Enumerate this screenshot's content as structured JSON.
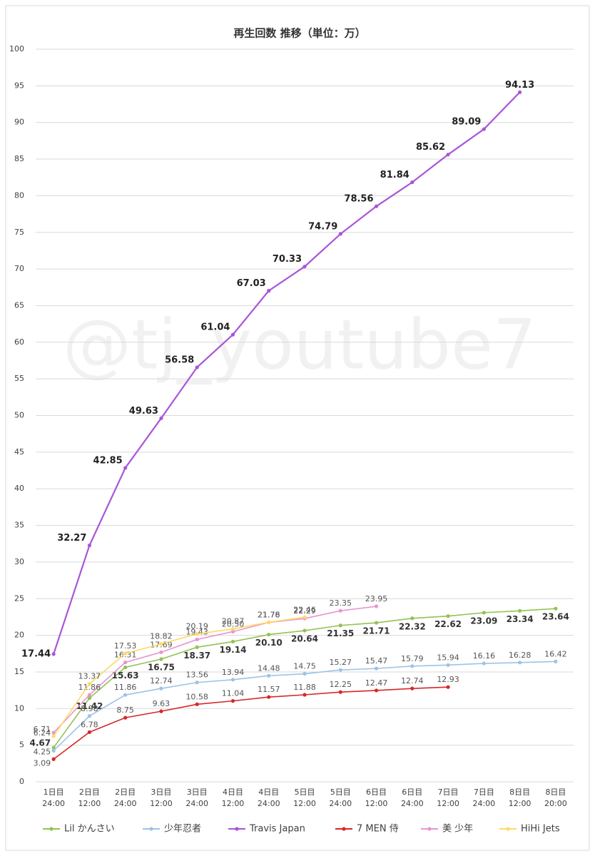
{
  "chart_data": {
    "type": "line",
    "title": "再生回数 推移（単位：万）",
    "watermark": "@tj_youtube7",
    "categories": [
      "1日目\n24:00",
      "2日目\n12:00",
      "2日目\n24:00",
      "3日目\n12:00",
      "3日目\n24:00",
      "4日目\n12:00",
      "4日目\n24:00",
      "5日目\n12:00",
      "5日目\n24:00",
      "6日目\n12:00",
      "6日目\n24:00",
      "7日目\n12:00",
      "7日目\n24:00",
      "8日目\n12:00",
      "8日目\n20:00"
    ],
    "ylim": [
      0,
      100
    ],
    "yticks": [
      0,
      5,
      10,
      15,
      20,
      25,
      30,
      35,
      40,
      45,
      50,
      55,
      60,
      65,
      70,
      75,
      80,
      85,
      90,
      95,
      100
    ],
    "grid": true,
    "legend": "bottom",
    "series": [
      {
        "name": "Lil かんさい",
        "color": "#92c353",
        "values": [
          4.67,
          11.42,
          15.63,
          16.75,
          18.37,
          19.14,
          20.1,
          20.64,
          21.35,
          21.71,
          22.32,
          22.62,
          23.09,
          23.34,
          23.64
        ],
        "value_labels": [
          "4.67",
          "11.42",
          "15.63",
          "16.75",
          "18.37",
          "19.14",
          "20.10",
          "20.64",
          "21.35",
          "21.71",
          "22.32",
          "22.62",
          "23.09",
          "23.34",
          "23.64"
        ]
      },
      {
        "name": "少年忍者",
        "color": "#9dc3e6",
        "values": [
          4.25,
          8.98,
          11.86,
          12.74,
          13.56,
          13.94,
          14.48,
          14.75,
          15.27,
          15.47,
          15.79,
          15.94,
          16.16,
          16.28,
          16.42
        ],
        "value_labels": [
          "4.25",
          "8.98",
          "11.86",
          "12.74",
          "13.56",
          "13.94",
          "14.48",
          "14.75",
          "15.27",
          "15.47",
          "15.79",
          "15.94",
          "16.16",
          "16.28",
          "16.42"
        ]
      },
      {
        "name": "Travis Japan",
        "color": "#a855d8",
        "values": [
          17.44,
          32.27,
          42.85,
          49.63,
          56.58,
          61.04,
          67.03,
          70.33,
          74.79,
          78.56,
          81.84,
          85.62,
          89.09,
          94.13,
          null
        ],
        "value_labels": [
          "17.44",
          "32.27",
          "42.85",
          "49.63",
          "56.58",
          "61.04",
          "67.03",
          "70.33",
          "74.79",
          "78.56",
          "81.84",
          "85.62",
          "89.09",
          "94.13",
          null
        ]
      },
      {
        "name": "7 MEN 侍",
        "color": "#d62728",
        "values": [
          3.09,
          6.78,
          8.75,
          9.63,
          10.58,
          11.04,
          11.57,
          11.88,
          12.25,
          12.47,
          12.74,
          12.93,
          null,
          null,
          null
        ],
        "value_labels": [
          "3.09",
          "6.78",
          "8.75",
          "9.63",
          "10.58",
          "11.04",
          "11.57",
          "11.88",
          "12.25",
          "12.47",
          "12.74",
          "12.93",
          null,
          null,
          null
        ]
      },
      {
        "name": "美 少年",
        "color": "#e895d0",
        "values": [
          6.71,
          11.86,
          16.31,
          17.69,
          19.43,
          20.5,
          21.76,
          22.29,
          23.35,
          23.95,
          null,
          null,
          null,
          null,
          null
        ],
        "value_labels": [
          "6.71",
          "11.86",
          "16.31",
          "17.69",
          "19.43",
          "20.50",
          "21.76",
          "22.29",
          "23.35",
          "23.95",
          null,
          null,
          null,
          null,
          null
        ]
      },
      {
        "name": "HiHi Jets",
        "color": "#ffd966",
        "values": [
          6.24,
          13.37,
          17.53,
          18.82,
          20.19,
          20.87,
          21.78,
          22.46,
          null,
          null,
          null,
          null,
          null,
          null,
          null
        ],
        "value_labels": [
          "6.24",
          "13.37",
          "17.53",
          "18.82",
          "20.19",
          "20.87",
          "21.78",
          "22.46",
          null,
          null,
          null,
          null,
          null,
          null,
          null
        ]
      }
    ]
  }
}
